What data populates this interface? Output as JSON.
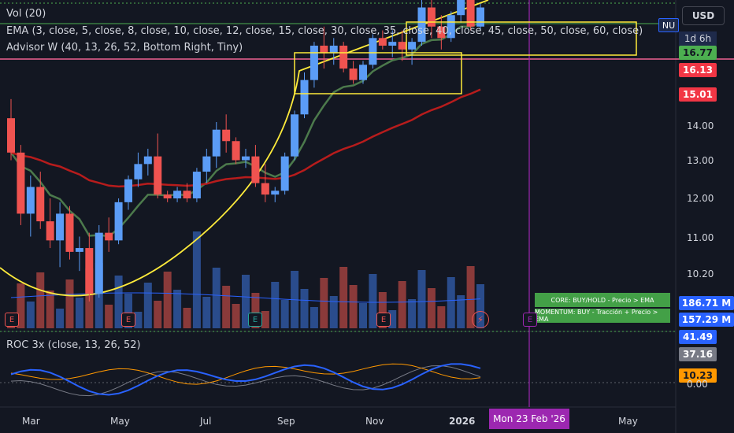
{
  "indicators": {
    "vol": "Vol (20)",
    "ema": "EMA (3, close, 5, close, 8, close, 10, close, 12, close, 15, close, 30, close, 35, close, 40, close, 45, close, 50, close, 60, close)",
    "advisor": "Advisor W (40, 13, 26, 52, Bottom Right, Tiny)",
    "roc": "ROC 3x (close, 13, 26, 52)"
  },
  "currency": "USD",
  "symbol_tag": "NU",
  "countdown": "1d 6h",
  "price_tags": [
    {
      "value": "16.77",
      "bg": "#4caf50"
    },
    {
      "value": "16.13",
      "bg": "#f23645"
    },
    {
      "value": "15.01",
      "bg": "#f23645"
    },
    {
      "value": "186.71 M",
      "bg": "#2962ff"
    },
    {
      "value": "157.29 M",
      "bg": "#2962ff"
    },
    {
      "value": "41.49",
      "bg": "#2962ff"
    },
    {
      "value": "37.16",
      "bg": "#787b86"
    },
    {
      "value": "10.23",
      "bg": "#ff9800"
    }
  ],
  "price_axis": [
    "14.00",
    "13.00",
    "12.00",
    "11.00",
    "10.20",
    "0.00"
  ],
  "time_axis": [
    "Mar",
    "May",
    "Jul",
    "Sep",
    "Nov",
    "2026",
    "May"
  ],
  "crosshair_date": "Mon 23 Feb '26",
  "advisor_badges": {
    "core": "CORE: BUY/HOLD - Precio > EMA",
    "momentum": "MOMENTUM: BUY - Tracción + Precio > EMA"
  },
  "earnings_marker": "E",
  "colors": {
    "up": "#5b9cf6",
    "down": "#ef5350",
    "ema_fast": "#4c7a4c",
    "ema_slow": "#b71c1c",
    "yellow": "#ffeb3b",
    "crosshair": "#9c27b0",
    "badge_green": "#43a047"
  },
  "chart_data": {
    "type": "candlestick",
    "candles": [
      [
        14.1,
        14.6,
        13.0,
        13.2
      ],
      [
        13.2,
        13.4,
        11.3,
        11.6
      ],
      [
        11.6,
        12.6,
        11.0,
        12.3
      ],
      [
        12.3,
        12.7,
        11.2,
        11.4
      ],
      [
        11.4,
        12.0,
        10.7,
        10.9
      ],
      [
        10.9,
        11.9,
        10.2,
        11.6
      ],
      [
        11.6,
        11.8,
        10.4,
        10.6
      ],
      [
        10.6,
        11.0,
        10.1,
        10.7
      ],
      [
        10.7,
        11.1,
        9.3,
        9.5
      ],
      [
        9.5,
        11.3,
        9.4,
        11.1
      ],
      [
        11.1,
        11.5,
        10.6,
        10.9
      ],
      [
        10.9,
        12.0,
        10.8,
        11.9
      ],
      [
        11.9,
        12.6,
        11.7,
        12.5
      ],
      [
        12.5,
        13.2,
        12.3,
        12.9
      ],
      [
        12.9,
        13.3,
        12.6,
        13.1
      ],
      [
        13.1,
        13.7,
        12.0,
        12.1
      ],
      [
        12.1,
        12.2,
        11.9,
        12.0
      ],
      [
        12.0,
        12.3,
        11.9,
        12.2
      ],
      [
        12.2,
        12.4,
        11.9,
        12.0
      ],
      [
        12.0,
        12.8,
        11.9,
        12.7
      ],
      [
        12.7,
        13.3,
        12.4,
        13.1
      ],
      [
        13.1,
        14.0,
        12.8,
        13.8
      ],
      [
        13.8,
        14.2,
        13.2,
        13.5
      ],
      [
        13.5,
        13.6,
        12.9,
        13.0
      ],
      [
        13.0,
        13.3,
        12.8,
        13.1
      ],
      [
        13.1,
        13.4,
        12.3,
        12.4
      ],
      [
        12.4,
        12.9,
        11.9,
        12.1
      ],
      [
        12.1,
        12.3,
        11.9,
        12.2
      ],
      [
        12.2,
        13.2,
        12.1,
        13.1
      ],
      [
        13.1,
        14.3,
        13.0,
        14.2
      ],
      [
        14.2,
        15.3,
        14.1,
        15.1
      ],
      [
        15.1,
        16.1,
        14.9,
        16.0
      ],
      [
        16.0,
        16.5,
        15.4,
        15.8
      ],
      [
        15.8,
        16.2,
        15.5,
        16.0
      ],
      [
        16.0,
        16.1,
        15.3,
        15.4
      ],
      [
        15.4,
        15.6,
        15.0,
        15.1
      ],
      [
        15.1,
        15.6,
        15.0,
        15.5
      ],
      [
        15.5,
        16.3,
        15.4,
        16.2
      ],
      [
        16.2,
        16.4,
        15.9,
        16.0
      ],
      [
        16.0,
        16.4,
        15.7,
        16.1
      ],
      [
        16.1,
        16.4,
        15.6,
        15.9
      ],
      [
        15.9,
        16.2,
        15.5,
        16.1
      ],
      [
        16.1,
        17.2,
        16.0,
        17.0
      ],
      [
        17.0,
        17.3,
        16.2,
        16.5
      ],
      [
        16.5,
        16.8,
        15.9,
        16.2
      ],
      [
        16.2,
        16.9,
        16.1,
        16.8
      ],
      [
        16.8,
        17.4,
        16.6,
        17.2
      ],
      [
        17.2,
        17.3,
        16.4,
        16.5
      ],
      [
        16.5,
        17.1,
        16.4,
        17.0
      ]
    ]
  }
}
